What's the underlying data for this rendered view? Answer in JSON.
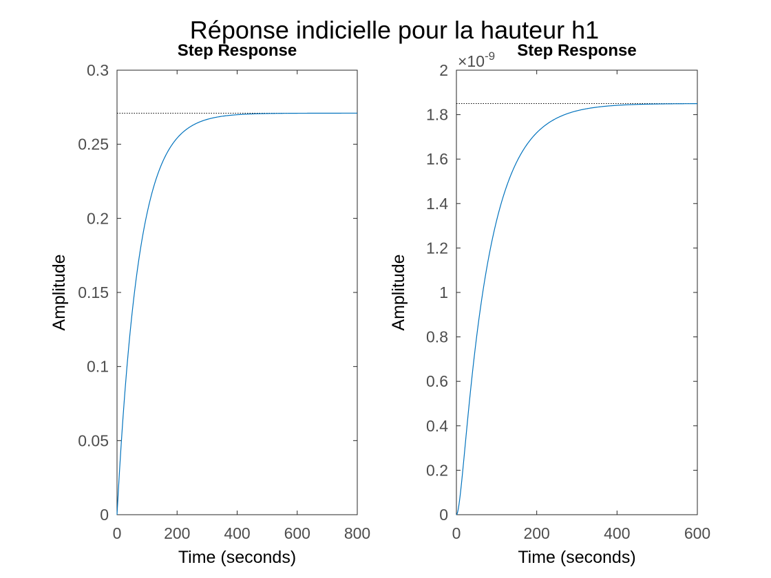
{
  "figure": {
    "suptitle": "Réponse indicielle pour la hauteur h1"
  },
  "chart_data": [
    {
      "type": "line",
      "title": "Step Response",
      "xlabel": "Time (seconds)",
      "ylabel": "Amplitude",
      "xlim": [
        0,
        800
      ],
      "ylim": [
        0,
        0.3
      ],
      "xticks": [
        0,
        200,
        400,
        600,
        800
      ],
      "xtick_labels": [
        "0",
        "200",
        "400",
        "600",
        "800"
      ],
      "yticks": [
        0,
        0.05,
        0.1,
        0.15,
        0.2,
        0.25,
        0.3
      ],
      "ytick_labels": [
        "0",
        "0.05",
        "0.1",
        "0.15",
        "0.2",
        "0.25",
        "0.3"
      ],
      "exponent_label": "",
      "grid": false,
      "steady_state": 0.271,
      "response": {
        "kind": "first-order",
        "final_value": 0.271,
        "time_constant": 72,
        "t_end": 800
      },
      "line_color": "#0072bd",
      "steady_line_color": "#000000"
    },
    {
      "type": "line",
      "title": "Step Response",
      "xlabel": "Time (seconds)",
      "ylabel": "Amplitude",
      "xlim": [
        0,
        600
      ],
      "ylim": [
        0,
        2e-09
      ],
      "xticks": [
        0,
        200,
        400,
        600
      ],
      "xtick_labels": [
        "0",
        "200",
        "400",
        "600"
      ],
      "yticks": [
        0,
        2e-10,
        4e-10,
        6e-10,
        8e-10,
        1e-09,
        1.2e-09,
        1.4e-09,
        1.6e-09,
        1.8e-09,
        2e-09
      ],
      "ytick_labels": [
        "0",
        "0.2",
        "0.4",
        "0.6",
        "0.8",
        "1",
        "1.2",
        "1.4",
        "1.6",
        "1.8",
        "2"
      ],
      "exponent_label": "×10",
      "exponent_power": "-9",
      "grid": false,
      "steady_state": 1.85e-09,
      "response": {
        "kind": "second-order",
        "final_value": 1.85e-09,
        "time_constant_1": 72,
        "time_constant_2": 9,
        "t_end": 600
      },
      "line_color": "#0072bd",
      "steady_line_color": "#000000"
    }
  ]
}
